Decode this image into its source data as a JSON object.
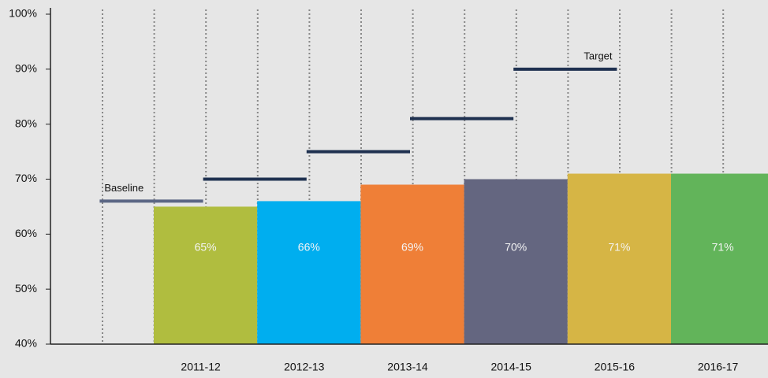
{
  "chart_data": {
    "type": "bar",
    "categories": [
      "2011-12",
      "2012-13",
      "2013-14",
      "2014-15",
      "2015-16",
      "2016-17"
    ],
    "values": [
      65,
      66,
      69,
      70,
      71,
      71
    ],
    "value_labels": [
      "65%",
      "66%",
      "69%",
      "70%",
      "71%",
      "71%"
    ],
    "colors": [
      "#b0bd3f",
      "#00aeef",
      "#ef7f37",
      "#646680",
      "#d6b545",
      "#62b45a"
    ],
    "targets": {
      "values": [
        66,
        70,
        75,
        81,
        90
      ],
      "labels": [
        "Baseline",
        null,
        null,
        null,
        "Target"
      ],
      "colors": [
        "#5b6684",
        "#1f3150",
        "#1f3150",
        "#1f3150",
        "#1f3150"
      ]
    },
    "ylim": [
      40,
      100
    ],
    "yticks": [
      {
        "value": 40,
        "label": "40%"
      },
      {
        "value": 50,
        "label": "50%"
      },
      {
        "value": 60,
        "label": "60%"
      },
      {
        "value": 70,
        "label": "70%"
      },
      {
        "value": 80,
        "label": "80%"
      },
      {
        "value": 90,
        "label": "90%"
      },
      {
        "value": 100,
        "label": "100%"
      }
    ]
  }
}
